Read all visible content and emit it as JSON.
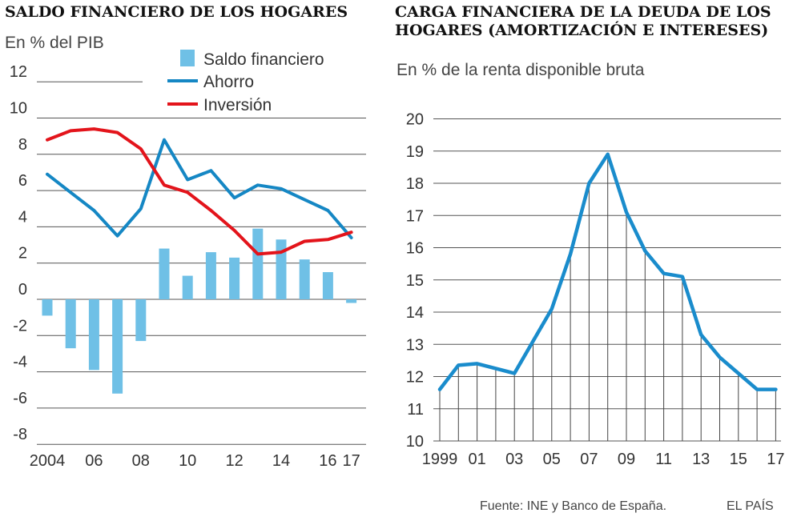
{
  "left_chart": {
    "title": "SALDO FINANCIERO DE LOS HOGARES",
    "subtitle": "En % del PIB",
    "legend": {
      "saldo": "Saldo financiero",
      "ahorro": "Ahorro",
      "inversion": "Inversión"
    },
    "x_tick_labels": [
      {
        "label": "2004",
        "year": 2004
      },
      {
        "label": "06",
        "year": 2006
      },
      {
        "label": "08",
        "year": 2008
      },
      {
        "label": "10",
        "year": 2010
      },
      {
        "label": "12",
        "year": 2012
      },
      {
        "label": "14",
        "year": 2014
      },
      {
        "label": "16",
        "year": 2016
      },
      {
        "label": "17",
        "year": 2017
      }
    ],
    "y_tick_labels": [
      "12",
      "10",
      "8",
      "6",
      "4",
      "2",
      "0",
      "-2",
      "-4",
      "-6",
      "-8"
    ]
  },
  "right_chart": {
    "title": "CARGA FINANCIERA DE LA DEUDA DE LOS HOGARES (AMORTIZACIÓN E INTERESES)",
    "subtitle": "En % de la renta disponible bruta",
    "x_tick_labels": [
      {
        "label": "1999",
        "year": 1999
      },
      {
        "label": "01",
        "year": 2001
      },
      {
        "label": "03",
        "year": 2003
      },
      {
        "label": "05",
        "year": 2005
      },
      {
        "label": "07",
        "year": 2007
      },
      {
        "label": "09",
        "year": 2009
      },
      {
        "label": "11",
        "year": 2011
      },
      {
        "label": "13",
        "year": 2013
      },
      {
        "label": "15",
        "year": 2015
      },
      {
        "label": "17",
        "year": 2017
      }
    ],
    "y_tick_labels": [
      "20",
      "19",
      "18",
      "17",
      "16",
      "15",
      "14",
      "13",
      "12",
      "11",
      "10"
    ]
  },
  "footer": {
    "source": "Fuente: INE y Banco de España.",
    "brand": "EL PAÍS"
  },
  "colors": {
    "saldo": "#6fc0e6",
    "ahorro": "#1587c4",
    "inversion": "#e3141b",
    "carga": "#1a8ccc",
    "grid": "#555555"
  },
  "chart_data": [
    {
      "type": "bar+line",
      "title": "SALDO FINANCIERO DE LOS HOGARES",
      "ylabel": "En % del PIB",
      "ylim": [
        -8,
        12
      ],
      "x": [
        2004,
        2005,
        2006,
        2007,
        2008,
        2009,
        2010,
        2011,
        2012,
        2013,
        2014,
        2015,
        2016,
        2017
      ],
      "series": [
        {
          "name": "Saldo financiero",
          "type": "bar",
          "values": [
            -0.9,
            -2.7,
            -3.9,
            -5.2,
            -2.3,
            2.8,
            1.3,
            2.6,
            2.3,
            3.9,
            3.3,
            2.2,
            1.5,
            -0.2
          ]
        },
        {
          "name": "Ahorro",
          "type": "line",
          "values": [
            6.9,
            5.9,
            4.9,
            3.5,
            5.0,
            8.8,
            6.6,
            7.1,
            5.6,
            6.3,
            6.1,
            5.5,
            4.9,
            3.4
          ]
        },
        {
          "name": "Inversión",
          "type": "line",
          "values": [
            8.8,
            9.3,
            9.4,
            9.2,
            8.3,
            6.3,
            5.9,
            4.9,
            3.8,
            2.5,
            2.6,
            3.2,
            3.3,
            3.7
          ]
        }
      ]
    },
    {
      "type": "line",
      "title": "CARGA FINANCIERA DE LA DEUDA DE LOS HOGARES (AMORTIZACIÓN E INTERESES)",
      "ylabel": "En % de la renta disponible bruta",
      "ylim": [
        10,
        20
      ],
      "x": [
        1999,
        2000,
        2001,
        2002,
        2003,
        2004,
        2005,
        2006,
        2007,
        2008,
        2009,
        2010,
        2011,
        2012,
        2013,
        2014,
        2015,
        2016,
        2017
      ],
      "series": [
        {
          "name": "Carga financiera",
          "values": [
            11.6,
            12.35,
            12.4,
            12.25,
            12.1,
            13.1,
            14.1,
            15.8,
            18.0,
            18.9,
            17.1,
            15.9,
            15.2,
            15.1,
            13.3,
            12.6,
            12.1,
            11.6,
            11.6
          ]
        }
      ]
    }
  ]
}
